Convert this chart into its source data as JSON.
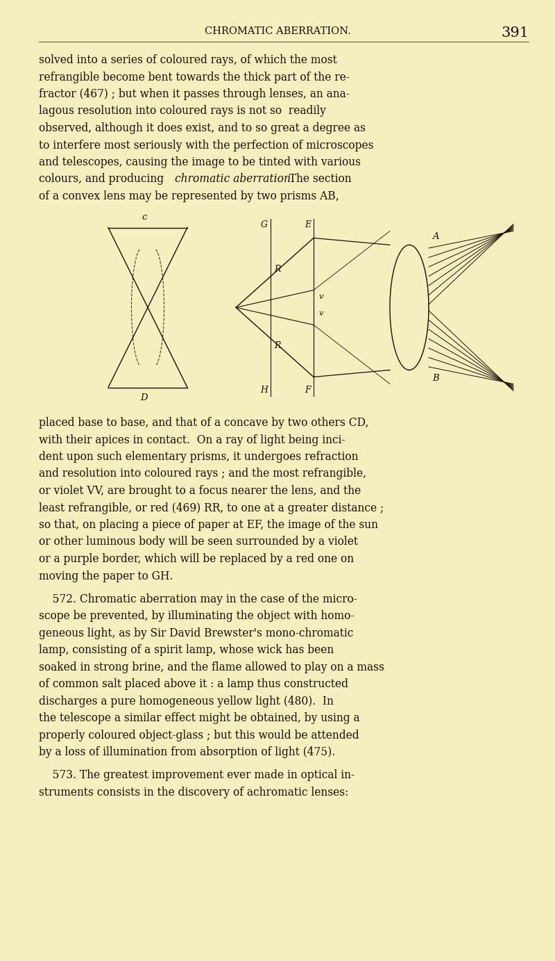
{
  "bg_color": "#f5efc0",
  "page_number": "391",
  "header": "CHROMATIC ABERRATION.",
  "header_fontsize": 10.5,
  "page_num_fontsize": 15,
  "body_fontsize": 11.2,
  "text_color": "#1a0f00",
  "lines_p1": [
    "solved into a series of coloured rays, of which the most",
    "refrangible become bent towards the thick part of the re-",
    "fractor (467) ; but when it passes through lenses, an ana-",
    "lagous resolution into coloured rays is not so  readily",
    "observed, although it does exist, and to so great a degree as",
    "to interfere most seriously with the perfection of microscopes",
    "and telescopes, causing the image to be tinted with various",
    "colours, and producing [i]chromatic aberration.[/i]  The section",
    "of a convex lens may be represented by two prisms AB,"
  ],
  "lines_p2": [
    "placed base to base, and that of a concave by two others CD,",
    "with their apices in contact.  On a ray of light being inci-",
    "dent upon such elementary prisms, it undergoes refraction",
    "and resolution into coloured rays ; and the most refrangible,",
    "or violet VV, are brought to a focus nearer the lens, and the",
    "least refrangible, or red (469) RR, to one at a greater distance ;",
    "so that, on placing a piece of paper at EF, the image of the sun",
    "or other luminous body will be seen surrounded by a violet",
    "or a purple border, which will be replaced by a red one on",
    "moving the paper to GH."
  ],
  "lines_p3": [
    "    572. Chromatic aberration may in the case of the micro-",
    "scope be prevented, by illuminating the object with homo-",
    "geneous light, as by Sir David Brewster's mono-chromatic",
    "lamp, consisting of a spirit lamp, whose wick has been",
    "soaked in strong brine, and the flame allowed to play on a mass",
    "of common salt placed above it : a lamp thus constructed",
    "discharges a pure homogeneous yellow light (480).  In",
    "the telescope a similar effect might be obtained, by using a",
    "properly coloured object-glass ; but this would be attended",
    "by a loss of illumination from absorption of light (475)."
  ],
  "lines_p4": [
    "    573. The greatest improvement ever made in optical in-",
    "struments consists in the discovery of achromatic lenses:"
  ]
}
